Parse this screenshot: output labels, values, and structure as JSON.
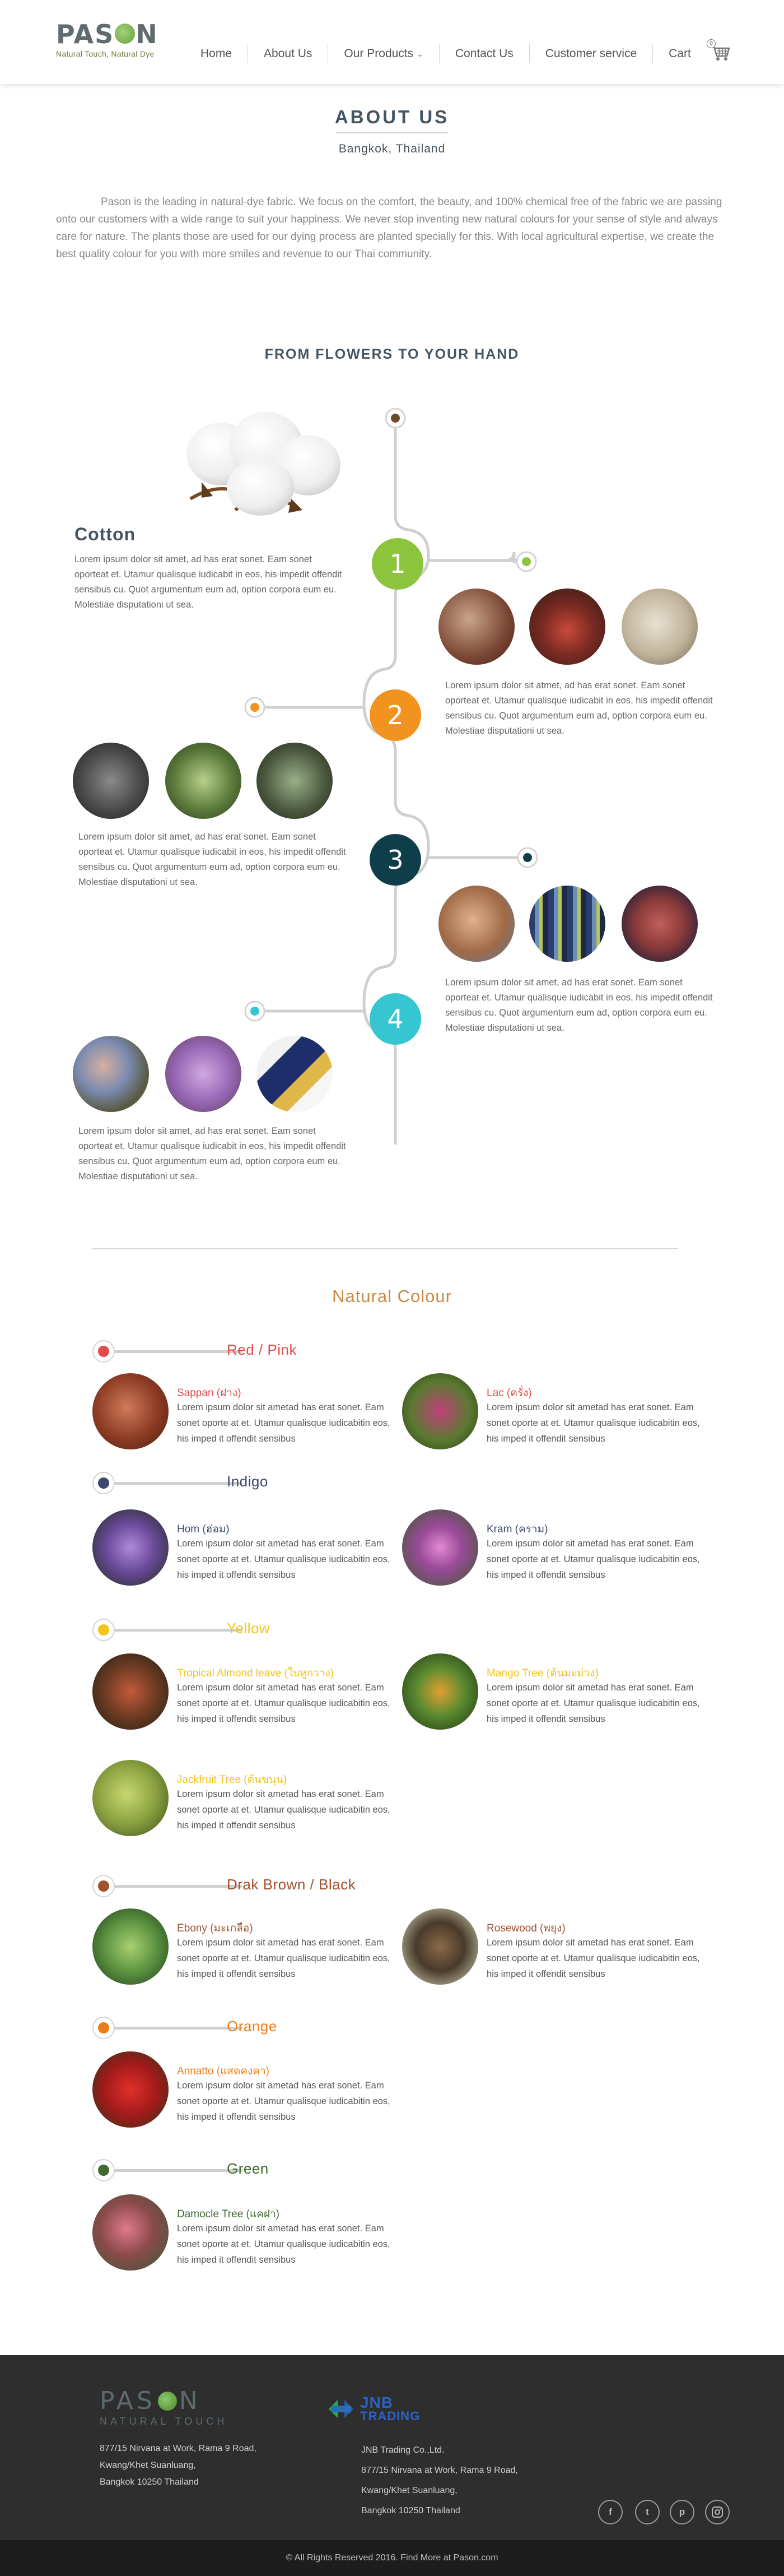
{
  "header": {
    "logo_name": "PASON",
    "logo_tagline": "Natural Touch, Natural Dye",
    "nav": [
      "Home",
      "About Us",
      "Our Products",
      "Contact Us",
      "Customer service",
      "Cart"
    ],
    "cart_count": "0"
  },
  "about": {
    "title": "ABOUT US",
    "subtitle": "Bangkok, Thailand",
    "text": "Pason is the leading in natural-dye fabric. We focus on the comfort, the beauty, and 100% chemical free of the fabric we are passing onto our customers with a wide range to suit your happiness. We never stop inventing new natural colours for your sense of style and always care for nature. The plants those are used for our dying process are planted specially for this. With local agricultural expertise, we create the best quality colour for you with more smiles and revenue to our Thai community."
  },
  "process": {
    "title": "FROM FLOWERS TO YOUR HAND",
    "cotton_title": "Cotton",
    "cotton_text": "Lorem ipsum dolor sit amet, ad has erat sonet. Eam sonet oporteat et. Utamur qualisque iudicabit in eos, his impedit offendit sensibus cu. Quot argumentum eum ad, option corpora eum eu. Molestiae disputationi ut sea.",
    "steps": [
      {
        "num": "1",
        "color": "#8cc43c",
        "text": ""
      },
      {
        "num": "2",
        "color": "#f2931f",
        "text": "Lorem ipsum dolor sit atmet, ad has erat sonet. Eam sonet oporteat et. Utamur qualisque iudicabit in eos, his impedit offendit sensibus cu. Quot argumentum eum ad, option corpora eum eu. Molestiae disputationi ut sea."
      },
      {
        "num": "3",
        "color": "#0e3e4a",
        "text": "Lorem ipsum dolor sit amet, ad has erat sonet. Eam sonet oporteat et. Utamur qualisque iudicabit in eos, his impedit offendit sensibus cu. Quot argumentum eum ad, option corpora eum eu. Molestiae disputationi ut sea."
      },
      {
        "num": "4",
        "color": "#35c6d2",
        "text": "Lorem ipsum dolor sit amet, ad has erat sonet. Eam sonet oporteat et. Utamur qualisque iudicabit in eos, his impedit offendit sensibus cu. Quot argumentum eum ad, option corpora eum eu. Molestiae disputationi ut sea."
      }
    ],
    "final_text": "Lorem ipsum dolor sit amet, ad has erat sonet. Eam sonet oporteat et. Utamur qualisque iudicabit in eos, his impedit offendit sensibus cu. Quot argumentum eum ad, option corpora eum eu. Molestiae disputationi ut sea."
  },
  "natural_colour": {
    "title": "Natural Colour",
    "desc": "Lorem ipsum dolor sit ametad has erat sonet. Eam sonet oporte at et.  Utamur qualisque iudicabitin eos, his imped it offendit sensibus",
    "categories": [
      {
        "name": "Red / Pink",
        "color": "#e14b4b",
        "plants": [
          "Sappan (ฝาง)",
          "Lac (ครั่ง)"
        ]
      },
      {
        "name": "Indigo",
        "color": "#3d4a6d",
        "plants": [
          "Hom (ฮ่อม)",
          "Kram (คราม)"
        ]
      },
      {
        "name": "Yellow",
        "color": "#f2c418",
        "plants": [
          "Tropical Almond leave (ใบหูกวาง)",
          "Mango Tree (ต้นมะม่วง)",
          "Jackfruit Tree (ต้นขนุน)"
        ]
      },
      {
        "name": "Drak Brown / Black",
        "color": "#a0522d",
        "plants": [
          "Ebony (มะเกลือ)",
          "Rosewood (พยุง)"
        ]
      },
      {
        "name": "Orange",
        "color": "#ee7d19",
        "plants": [
          "Annatto (แสดคงคา)"
        ]
      },
      {
        "name": "Green",
        "color": "#3f6b2e",
        "plants": [
          "Damocle Tree (แคฝา)"
        ]
      }
    ]
  },
  "footer": {
    "logo_name": "PASON",
    "logo_tagline": "NATURAL TOUCH",
    "address": [
      "877/15 Nirvana at Work, Rama 9 Road,",
      "Kwang/Khet Suanluang,",
      "Bangkok 10250 Thailand"
    ],
    "partner_logo_top": "JNB",
    "partner_logo_bottom": "TRADING",
    "company": [
      "JNB Trading Co.,Ltd.",
      "877/15 Nirvana at Work, Rama 9 Road,",
      "Kwang/Khet Suanluang,",
      "Bangkok 10250 Thailand"
    ],
    "social": [
      "facebook-icon",
      "twitter-icon",
      "pinterest-icon",
      "instagram-icon"
    ],
    "copyright": "© All Rights Reserved 2016. Find  More at Pason.com"
  }
}
